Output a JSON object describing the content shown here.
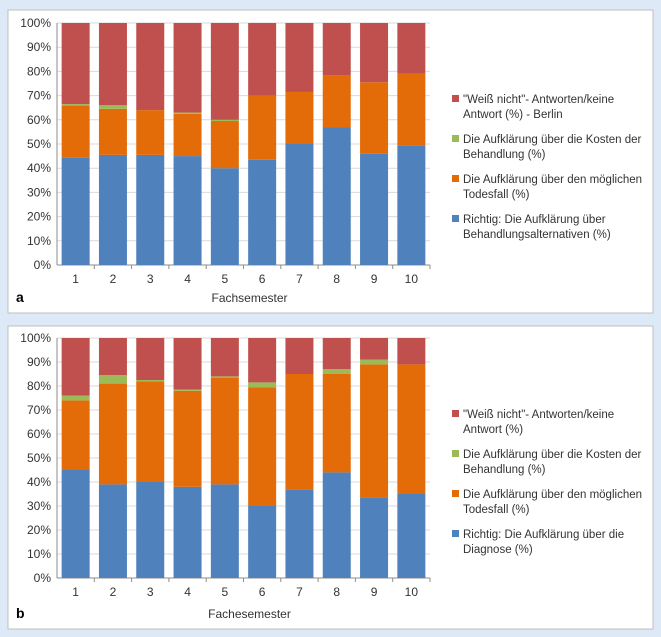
{
  "colors": {
    "blue": "#4f81bd",
    "orange": "#e36c09",
    "green": "#9bbb59",
    "red": "#c0504d",
    "grid": "#d9d9d9",
    "axis": "#8c8c8c",
    "text": "#333333"
  },
  "chart_data": [
    {
      "type": "bar",
      "stacked": true,
      "panel_label": "a",
      "xlabel": "Fachsemester",
      "ylabel": "",
      "ylim": [
        0,
        100
      ],
      "y_ticks": [
        "0%",
        "10%",
        "20%",
        "30%",
        "40%",
        "50%",
        "60%",
        "70%",
        "80%",
        "90%",
        "100%"
      ],
      "grid": true,
      "legend_position": "right",
      "categories": [
        "1",
        "2",
        "3",
        "4",
        "5",
        "6",
        "7",
        "8",
        "9",
        "10"
      ],
      "series": [
        {
          "name": "Richtig: Die Aufklärung über Behandlungsalternativen (%)",
          "color": "#4f81bd",
          "values": [
            44.5,
            45.5,
            45.5,
            45,
            40,
            43.5,
            50,
            57,
            46,
            49.5
          ]
        },
        {
          "name": "Die Aufklärung über den möglichen Todesfall (%)",
          "color": "#e36c09",
          "values": [
            21.5,
            19,
            18.5,
            17.5,
            19.5,
            26.5,
            21.5,
            21.5,
            29.5,
            29.5
          ]
        },
        {
          "name": "Die Aufklärung über die Kosten der Behandlung (%)",
          "color": "#9bbb59",
          "values": [
            0.5,
            1.5,
            0,
            0.5,
            0.5,
            0,
            0,
            0,
            0,
            0
          ]
        },
        {
          "name": "\"Weiß nicht\"- Antworten/keine Antwort (%) - Berlin",
          "color": "#c0504d",
          "values": [
            33.5,
            34,
            36,
            37,
            40,
            30,
            28.5,
            21.5,
            24.5,
            21
          ]
        }
      ],
      "legend_lines": [
        [
          "\"Weiß nicht\"- Antworten/keine",
          "Antwort (%) - Berlin"
        ],
        [
          "Die Aufklärung über die Kosten der",
          "Behandlung (%)"
        ],
        [
          "Die Aufklärung über den möglichen",
          "Todesfall (%)"
        ],
        [
          "Richtig: Die Aufklärung über",
          "Behandlungsalternativen (%)"
        ]
      ]
    },
    {
      "type": "bar",
      "stacked": true,
      "panel_label": "b",
      "xlabel": "Fachesemester",
      "ylabel": "",
      "ylim": [
        0,
        100
      ],
      "y_ticks": [
        "0%",
        "10%",
        "20%",
        "30%",
        "40%",
        "50%",
        "60%",
        "70%",
        "80%",
        "90%",
        "100%"
      ],
      "grid": true,
      "legend_position": "right",
      "categories": [
        "1",
        "2",
        "3",
        "4",
        "5",
        "6",
        "7",
        "8",
        "9",
        "10"
      ],
      "series": [
        {
          "name": "Richtig: Die Aufklärung über die Diagnose (%)",
          "color": "#4f81bd",
          "values": [
            45,
            39,
            40,
            38,
            39,
            30,
            37,
            44,
            33.5,
            35
          ]
        },
        {
          "name": "Die Aufklärung über den möglichen Todesfall (%)",
          "color": "#e36c09",
          "values": [
            29,
            42,
            42,
            40,
            44.5,
            49.5,
            48,
            41,
            55.5,
            54
          ]
        },
        {
          "name": "Die Aufklärung über die Kosten der Behandlung (%)",
          "color": "#9bbb59",
          "values": [
            2,
            3.5,
            0.5,
            0.5,
            0.5,
            2,
            0,
            2,
            2,
            0
          ]
        },
        {
          "name": "\"Weiß nicht\"- Antworten/keine Antwort (%)",
          "color": "#c0504d",
          "values": [
            24,
            15.5,
            17.5,
            21.5,
            16,
            18.5,
            15,
            13,
            9,
            11
          ]
        }
      ],
      "legend_lines": [
        [
          "\"Weiß nicht\"- Antworten/keine",
          "Antwort (%)"
        ],
        [
          "Die Aufklärung über die Kosten der",
          "Behandlung (%)"
        ],
        [
          "Die Aufklärung über den möglichen",
          "Todesfall (%)"
        ],
        [
          "Richtig: Die Aufklärung über die",
          "Diagnose (%)"
        ]
      ]
    }
  ]
}
